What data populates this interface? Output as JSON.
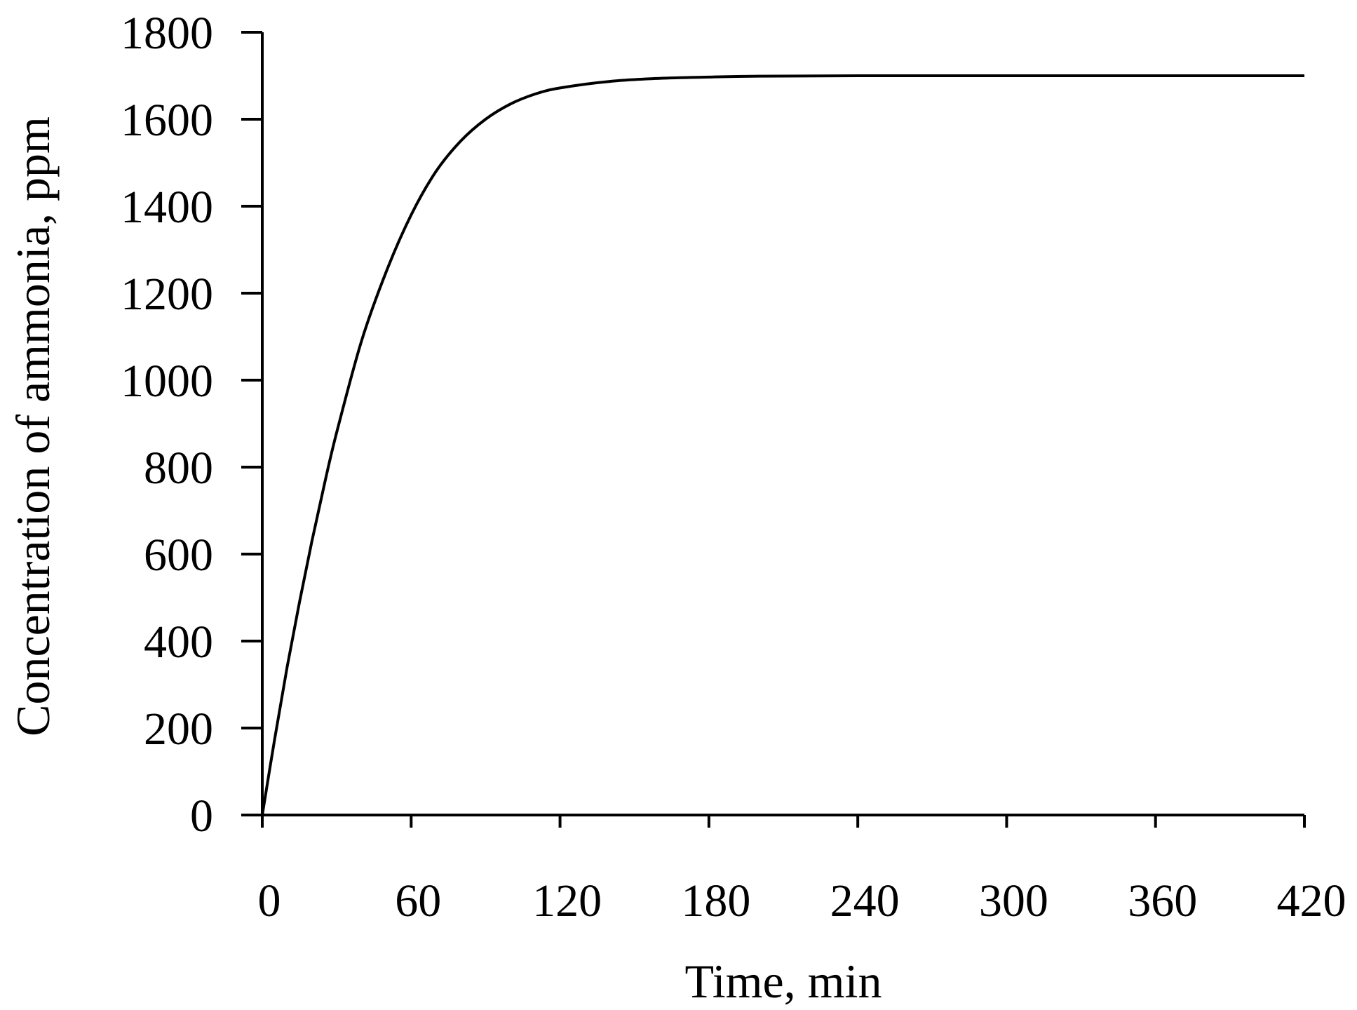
{
  "chart_data": {
    "type": "line",
    "xlabel": "Time, min",
    "ylabel": "Concentration of ammonia, ppm",
    "xlim": [
      0,
      420
    ],
    "ylim": [
      0,
      1800
    ],
    "x_ticks": [
      "0",
      "60",
      "120",
      "180",
      "240",
      "300",
      "360",
      "420"
    ],
    "y_ticks": [
      "0",
      "200",
      "400",
      "600",
      "800",
      "1000",
      "1200",
      "1400",
      "1600",
      "1800"
    ],
    "grid": false,
    "series": [
      {
        "color": "#000000",
        "x": [
          0,
          5,
          10,
          15,
          20,
          25,
          30,
          40,
          50,
          60,
          70,
          80,
          90,
          100,
          110,
          120,
          140,
          160,
          180,
          200,
          240,
          300,
          360,
          420
        ],
        "y": [
          0,
          175,
          340,
          490,
          630,
          760,
          880,
          1090,
          1250,
          1380,
          1480,
          1550,
          1600,
          1635,
          1658,
          1672,
          1687,
          1694,
          1697,
          1699,
          1700,
          1700,
          1700,
          1700
        ]
      }
    ]
  }
}
